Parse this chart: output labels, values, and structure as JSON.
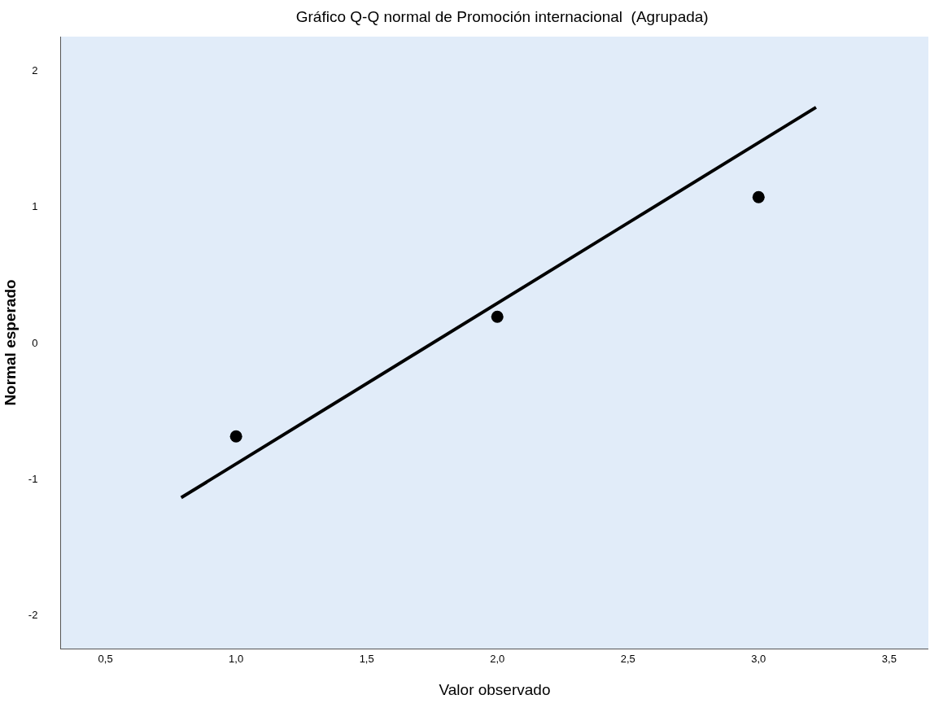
{
  "chart_data": {
    "type": "scatter",
    "title": "Gráfico Q-Q normal de Promoción internacional  (Agrupada)",
    "xlabel": "Valor observado",
    "ylabel": "Normal esperado",
    "series": [
      {
        "color": "#000000",
        "x": [
          1.0,
          2.0,
          3.0
        ],
        "values": [
          -0.69,
          0.19,
          1.07
        ],
        "marker": "circle"
      },
      {
        "type": "line",
        "color": "#000000",
        "x": [
          0.79,
          3.22
        ],
        "values": [
          -1.14,
          1.73
        ],
        "marker": "none",
        "line_style": "solid"
      }
    ],
    "xlim": [
      0.33,
      3.65
    ],
    "xticks": [
      {
        "value": 0.5,
        "label": "0,5"
      },
      {
        "value": 1.0,
        "label": "1,0"
      },
      {
        "value": 1.5,
        "label": "1,5"
      },
      {
        "value": 2.0,
        "label": "2,0"
      },
      {
        "value": 2.5,
        "label": "2,5"
      },
      {
        "value": 3.0,
        "label": "3,0"
      },
      {
        "value": 3.5,
        "label": "3,5"
      }
    ],
    "ylim": [
      -2.25,
      2.25
    ],
    "yticks": [
      -2,
      -1,
      0,
      1,
      2
    ]
  }
}
